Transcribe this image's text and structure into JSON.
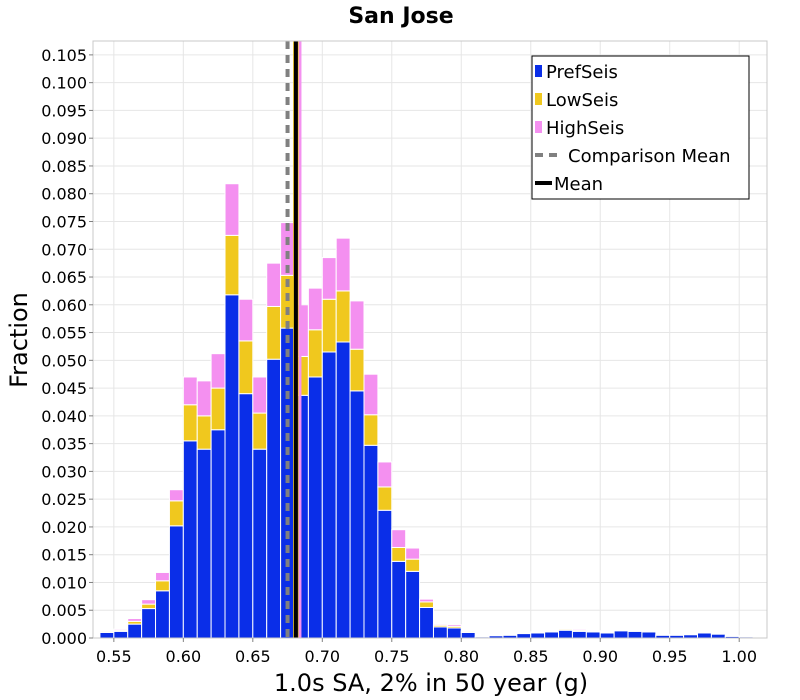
{
  "chart_data": {
    "type": "bar",
    "stacked": true,
    "title": "San Jose",
    "xlabel": "1.0s SA, 2% in 50 year (g)",
    "ylabel": "Fraction",
    "xlim": [
      0.535,
      1.02
    ],
    "ylim": [
      0,
      0.1075
    ],
    "bin_width": 0.01,
    "grid": true,
    "xticks": [
      "0.55",
      "0.60",
      "0.65",
      "0.70",
      "0.75",
      "0.80",
      "0.85",
      "0.90",
      "0.95",
      "1.00"
    ],
    "xtick_values": [
      0.55,
      0.6,
      0.65,
      0.7,
      0.75,
      0.8,
      0.85,
      0.9,
      0.95,
      1.0
    ],
    "yticks": [
      "0.000",
      "0.005",
      "0.010",
      "0.015",
      "0.020",
      "0.025",
      "0.030",
      "0.035",
      "0.040",
      "0.045",
      "0.050",
      "0.055",
      "0.060",
      "0.065",
      "0.070",
      "0.075",
      "0.080",
      "0.085",
      "0.090",
      "0.095",
      "0.100",
      "0.105"
    ],
    "ytick_values": [
      0,
      0.005,
      0.01,
      0.015,
      0.02,
      0.025,
      0.03,
      0.035,
      0.04,
      0.045,
      0.05,
      0.055,
      0.06,
      0.065,
      0.07,
      0.075,
      0.08,
      0.085,
      0.09,
      0.095,
      0.1,
      0.105
    ],
    "x": [
      0.545,
      0.555,
      0.565,
      0.575,
      0.585,
      0.595,
      0.605,
      0.615,
      0.625,
      0.635,
      0.645,
      0.655,
      0.665,
      0.675,
      0.685,
      0.695,
      0.705,
      0.715,
      0.725,
      0.735,
      0.745,
      0.755,
      0.765,
      0.775,
      0.785,
      0.795,
      0.805,
      0.815,
      0.825,
      0.835,
      0.845,
      0.855,
      0.865,
      0.875,
      0.885,
      0.895,
      0.905,
      0.915,
      0.925,
      0.935,
      0.945,
      0.955,
      0.965,
      0.975,
      0.985,
      0.995,
      1.005
    ],
    "series": [
      {
        "name": "PrefSeis",
        "color": "#0a2ee8",
        "values": [
          0.001,
          0.0012,
          0.0025,
          0.0053,
          0.0085,
          0.0202,
          0.0355,
          0.034,
          0.0375,
          0.0618,
          0.044,
          0.034,
          0.0502,
          0.0558,
          0.0437,
          0.047,
          0.0515,
          0.0533,
          0.0445,
          0.0347,
          0.023,
          0.0138,
          0.012,
          0.0055,
          0.002,
          0.0018,
          0.001,
          0.0002,
          0.0004,
          0.0005,
          0.0008,
          0.0009,
          0.0011,
          0.0014,
          0.0012,
          0.0011,
          0.0009,
          0.0013,
          0.0012,
          0.0011,
          0.0005,
          0.0005,
          0.0006,
          0.0009,
          0.0007,
          0.0003,
          0.0002
        ]
      },
      {
        "name": "LowSeis",
        "color": "#f0c81e",
        "values": [
          0.0002,
          0.0002,
          0.0005,
          0.0008,
          0.0018,
          0.0045,
          0.0065,
          0.006,
          0.0075,
          0.0107,
          0.0095,
          0.0065,
          0.0095,
          0.0095,
          0.007,
          0.0085,
          0.0095,
          0.0092,
          0.0075,
          0.0055,
          0.0042,
          0.0025,
          0.0022,
          0.001,
          0.0003,
          0.0003,
          0.0002,
          0.0,
          0.0,
          0.0001,
          0.0001,
          0.0001,
          0.0001,
          0.0002,
          0.0002,
          0.0001,
          0.0001,
          0.0001,
          0.0001,
          0.0001,
          0.0001,
          0.0001,
          0.0001,
          0.0001,
          0.0001,
          0.0001,
          0.0
        ]
      },
      {
        "name": "HighSeis",
        "color": "#f490f0",
        "values": [
          0.0001,
          0.0002,
          0.0005,
          0.0008,
          0.0015,
          0.002,
          0.005,
          0.0063,
          0.0062,
          0.0093,
          0.0075,
          0.0065,
          0.0078,
          0.0095,
          0.0093,
          0.0075,
          0.0075,
          0.0095,
          0.0087,
          0.0073,
          0.0045,
          0.0032,
          0.002,
          0.0005,
          0.0002,
          0.0003,
          0.0001,
          0.0,
          0.0,
          0.0,
          0.0001,
          0.0001,
          0.0001,
          0.0001,
          0.0002,
          0.0001,
          0.0001,
          0.0001,
          0.0001,
          0.0001,
          0.0,
          0.0,
          0.0,
          0.0001,
          0.0,
          0.0,
          0.0
        ]
      }
    ],
    "lines": [
      {
        "name": "Comparison Mean",
        "x": 0.675,
        "color": "#808080",
        "style": "dashed"
      },
      {
        "name": "Mean",
        "x": 0.681,
        "color": "#000000",
        "style": "solid"
      }
    ],
    "vertical_bands": [
      {
        "x0": 0.679,
        "x1": 0.683,
        "color": "#f0c81e"
      },
      {
        "x0": 0.683,
        "x1": 0.685,
        "color": "#f490f0"
      }
    ],
    "legend": {
      "position": "top-right",
      "items": [
        {
          "label": "PrefSeis",
          "color": "#0a2ee8",
          "kind": "box"
        },
        {
          "label": "LowSeis",
          "color": "#f0c81e",
          "kind": "box"
        },
        {
          "label": "HighSeis",
          "color": "#f490f0",
          "kind": "box"
        },
        {
          "label": "Comparison Mean",
          "color": "#808080",
          "kind": "dashed"
        },
        {
          "label": "Mean",
          "color": "#000000",
          "kind": "solid"
        }
      ]
    }
  }
}
